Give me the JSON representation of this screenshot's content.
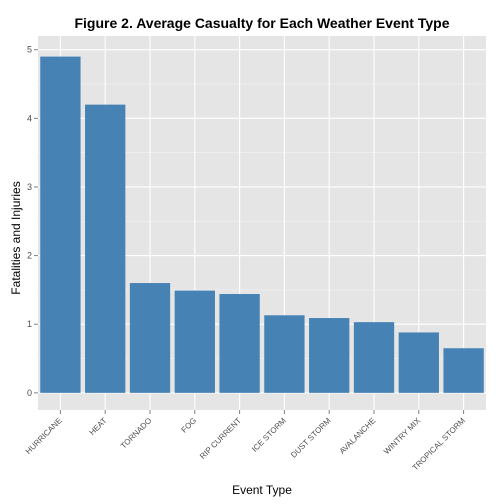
{
  "chart_data": {
    "type": "bar",
    "title": "Figure 2. Average Casualty for Each Weather Event Type",
    "xlabel": "Event Type",
    "ylabel": "Fatalities and Injuries",
    "categories": [
      "HURRICANE",
      "HEAT",
      "TORNADO",
      "FOG",
      "RIP CURRENT",
      "ICE STORM",
      "DUST STORM",
      "AVALANCHE",
      "WINTRY MIX",
      "TROPICAL STORM"
    ],
    "values": [
      4.9,
      4.2,
      1.6,
      1.49,
      1.44,
      1.13,
      1.09,
      1.03,
      0.88,
      0.65
    ],
    "ylim": [
      -0.25,
      5.2
    ],
    "yticks": [
      0,
      1,
      2,
      3,
      4,
      5
    ],
    "grid": true,
    "panel_color": "#e5e5e5",
    "grid_color": "#ffffff",
    "bar_color": "#4682b4"
  }
}
